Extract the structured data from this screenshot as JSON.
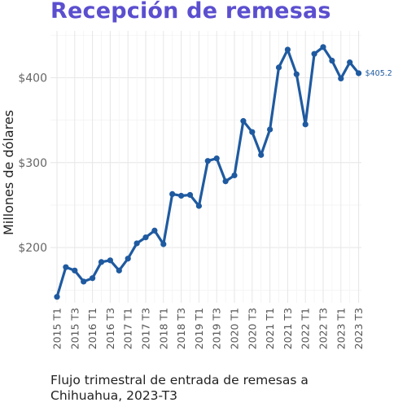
{
  "title": "Recepción de remesas",
  "caption_line1": "Flujo trimestral de entrada de remesas a",
  "caption_line2": "Chihuahua, 2023-T3",
  "chart_data": {
    "type": "line",
    "title": "Recepción de remesas",
    "ylabel": "Millones de dólares",
    "xlabel": "",
    "ylim": [
      135,
      455
    ],
    "yticks": [
      200,
      300,
      400
    ],
    "ytick_labels": [
      "$200",
      "$300",
      "$400"
    ],
    "grid": true,
    "line_color": "#1f5aa0",
    "end_label": "$405.2",
    "categories": [
      "2015 T1",
      "2015 T2",
      "2015 T3",
      "2015 T4",
      "2016 T1",
      "2016 T2",
      "2016 T3",
      "2016 T4",
      "2017 T1",
      "2017 T2",
      "2017 T3",
      "2017 T4",
      "2018 T1",
      "2018 T2",
      "2018 T3",
      "2018 T4",
      "2019 T1",
      "2019 T2",
      "2019 T3",
      "2019 T4",
      "2020 T1",
      "2020 T2",
      "2020 T3",
      "2020 T4",
      "2021 T1",
      "2021 T2",
      "2021 T3",
      "2021 T4",
      "2022 T1",
      "2022 T2",
      "2022 T3",
      "2022 T4",
      "2023 T1",
      "2023 T2",
      "2023 T3"
    ],
    "x_tick_labels": [
      "2015 T1",
      "2015 T3",
      "2016 T1",
      "2016 T3",
      "2017 T1",
      "2017 T3",
      "2018 T1",
      "2018 T3",
      "2019 T1",
      "2019 T3",
      "2020 T1",
      "2020 T3",
      "2021 T1",
      "2021 T3",
      "2022 T1",
      "2022 T3",
      "2023 T1",
      "2023 T3"
    ],
    "values": [
      142,
      177,
      173,
      160,
      164,
      183,
      185,
      173,
      187,
      205,
      212,
      220,
      204,
      263,
      261,
      262,
      249,
      302,
      305,
      278,
      285,
      349,
      336,
      309,
      339,
      412,
      433,
      404,
      345,
      428,
      436,
      420,
      399,
      418,
      405.2
    ]
  }
}
